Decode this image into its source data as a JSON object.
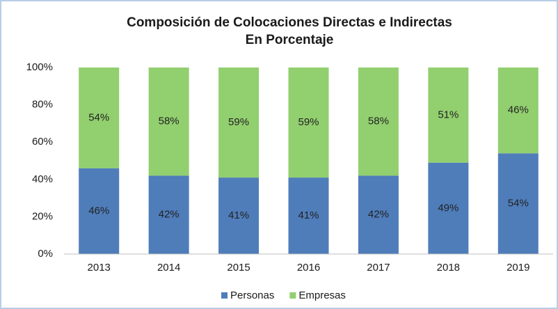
{
  "chart_data": {
    "type": "stacked_bar",
    "title": "Composición de Colocaciones Directas e Indirectas",
    "subtitle": "En Porcentaje",
    "categories": [
      "2013",
      "2014",
      "2015",
      "2016",
      "2017",
      "2018",
      "2019"
    ],
    "series": [
      {
        "name": "Personas",
        "color": "#4f7dba",
        "values": [
          46,
          42,
          41,
          41,
          42,
          49,
          54
        ],
        "value_labels": [
          "46%",
          "42%",
          "41%",
          "41%",
          "42%",
          "49%",
          "54%"
        ]
      },
      {
        "name": "Empresas",
        "color": "#92cf6f",
        "values": [
          54,
          58,
          59,
          59,
          58,
          51,
          46
        ],
        "value_labels": [
          "54%",
          "58%",
          "59%",
          "59%",
          "58%",
          "51%",
          "46%"
        ]
      }
    ],
    "ylim": [
      0,
      100
    ],
    "yticks": [
      {
        "value": 0,
        "label": "0%"
      },
      {
        "value": 20,
        "label": "20%"
      },
      {
        "value": 40,
        "label": "40%"
      },
      {
        "value": 60,
        "label": "60%"
      },
      {
        "value": 80,
        "label": "80%"
      },
      {
        "value": 100,
        "label": "100%"
      }
    ],
    "grid": false,
    "legend": "bottom"
  }
}
